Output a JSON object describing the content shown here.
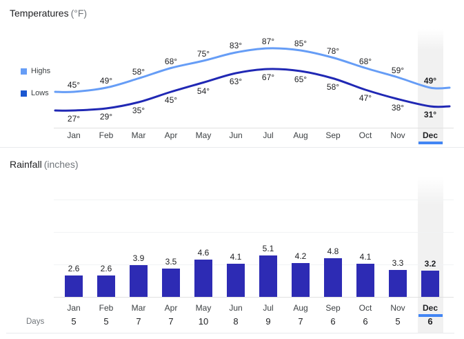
{
  "temperatures": {
    "title": "Temperatures",
    "unit": "(°F)",
    "legend": [
      {
        "label": "Highs",
        "color": "#669df6"
      },
      {
        "label": "Lows",
        "color": "#1b57d0"
      }
    ]
  },
  "rainfall": {
    "title": "Rainfall",
    "unit": "(inches)",
    "days_label": "Days"
  },
  "highlighted_month": "Dec",
  "colors": {
    "highs_line": "#669df6",
    "lows_line": "#2028b4",
    "bar": "#2d2bb4",
    "highlight_underline": "#4285f4",
    "highlight_band": "#f1f1f1"
  },
  "chart_data": [
    {
      "type": "line",
      "title": "Temperatures (°F)",
      "categories": [
        "Jan",
        "Feb",
        "Mar",
        "Apr",
        "May",
        "Jun",
        "Jul",
        "Aug",
        "Sep",
        "Oct",
        "Nov",
        "Dec"
      ],
      "series": [
        {
          "name": "Highs",
          "color": "#669df6",
          "values": [
            45,
            49,
            58,
            68,
            75,
            83,
            87,
            85,
            78,
            68,
            59,
            49
          ],
          "labels": [
            "45°",
            "49°",
            "58°",
            "68°",
            "75°",
            "83°",
            "87°",
            "85°",
            "78°",
            "68°",
            "59°",
            "49°"
          ]
        },
        {
          "name": "Lows",
          "color": "#2028b4",
          "values": [
            27,
            29,
            35,
            45,
            54,
            63,
            67,
            65,
            58,
            47,
            38,
            31
          ],
          "labels": [
            "27°",
            "29°",
            "35°",
            "45°",
            "54°",
            "63°",
            "67°",
            "65°",
            "58°",
            "47°",
            "38°",
            "31°"
          ]
        }
      ],
      "highlighted_category": "Dec",
      "legend_position": "left",
      "grid": false,
      "ylim": [
        25,
        90
      ]
    },
    {
      "type": "bar",
      "title": "Rainfall (inches)",
      "categories": [
        "Jan",
        "Feb",
        "Mar",
        "Apr",
        "May",
        "Jun",
        "Jul",
        "Aug",
        "Sep",
        "Oct",
        "Nov",
        "Dec"
      ],
      "values": [
        2.6,
        2.6,
        3.9,
        3.5,
        4.6,
        4.1,
        5.1,
        4.2,
        4.8,
        4.1,
        3.3,
        3.2
      ],
      "labels": [
        "2.6",
        "2.6",
        "3.9",
        "3.5",
        "4.6",
        "4.1",
        "5.1",
        "4.2",
        "4.8",
        "4.1",
        "3.3",
        "3.2"
      ],
      "days": [
        "5",
        "5",
        "7",
        "7",
        "10",
        "8",
        "9",
        "7",
        "6",
        "6",
        "5",
        "6"
      ],
      "bar_color": "#2d2bb4",
      "highlighted_category": "Dec",
      "ylim": [
        0,
        12
      ],
      "gridline_step": 4,
      "grid": true
    }
  ]
}
